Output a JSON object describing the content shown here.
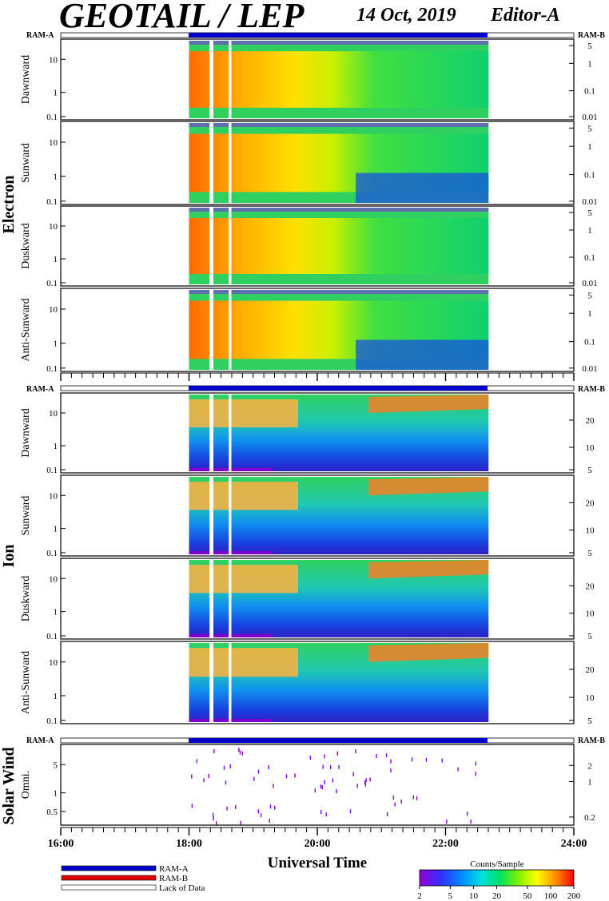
{
  "title": "GEOTAIL / LEP",
  "date": "14 Oct, 2019",
  "editor": "Editor-A",
  "xlabel": "Universal Time",
  "xticks": [
    "16:00",
    "18:00",
    "20:00",
    "22:00",
    "24:00"
  ],
  "ram_a": "RAM-A",
  "ram_b": "RAM-B",
  "groups": {
    "electron": "Electron",
    "ion": "Ion",
    "solar_wind": "Solar Wind"
  },
  "colorbar": {
    "title": "Counts/Sample",
    "ticks": [
      "2",
      "5",
      "10",
      "20",
      "50",
      "100",
      "200"
    ]
  },
  "legend": [
    {
      "label": "RAM-A",
      "color": "#0000c8"
    },
    {
      "label": "RAM-B",
      "color": "#e00000"
    },
    {
      "label": "Lack of Data",
      "color": "#ffffff"
    }
  ],
  "chart_data": {
    "type": "heatmap",
    "x_range_hours": [
      16,
      24
    ],
    "data_coverage_hours": [
      18.0,
      22.67
    ],
    "data_gaps_hours": [
      [
        18.32,
        18.38
      ],
      [
        18.62,
        18.66
      ]
    ],
    "panels": [
      {
        "group": "Electron",
        "name": "Dawnward",
        "yticks_left": [
          "10",
          "1",
          "0.1"
        ],
        "yticks_right": [
          "5",
          "1",
          "0.1",
          "0.01"
        ]
      },
      {
        "group": "Electron",
        "name": "Sunward",
        "yticks_left": [
          "10",
          "1",
          "0.1"
        ],
        "yticks_right": [
          "5",
          "1",
          "0.1",
          "0.01"
        ]
      },
      {
        "group": "Electron",
        "name": "Duskward",
        "yticks_left": [
          "10",
          "1",
          "0.1"
        ],
        "yticks_right": [
          "5",
          "1",
          "0.1",
          "0.01"
        ]
      },
      {
        "group": "Electron",
        "name": "Anti-Sunward",
        "yticks_left": [
          "10",
          "1",
          "0.1"
        ],
        "yticks_right": [
          "5",
          "1",
          "0.1",
          "0.01"
        ]
      },
      {
        "group": "Ion",
        "name": "Dawnward",
        "yticks_left": [
          "10",
          "1",
          "0.1"
        ],
        "yticks_right": [
          "20",
          "10",
          "5"
        ]
      },
      {
        "group": "Ion",
        "name": "Sunward",
        "yticks_left": [
          "10",
          "1",
          "0.1"
        ],
        "yticks_right": [
          "20",
          "10",
          "5"
        ]
      },
      {
        "group": "Ion",
        "name": "Duskward",
        "yticks_left": [
          "10",
          "1",
          "0.1"
        ],
        "yticks_right": [
          "20",
          "10",
          "5"
        ]
      },
      {
        "group": "Ion",
        "name": "Anti-Sunward",
        "yticks_left": [
          "10",
          "1",
          "0.1"
        ],
        "yticks_right": [
          "20",
          "10",
          "5"
        ]
      },
      {
        "group": "Solar Wind",
        "name": "Omni.",
        "yticks_left": [
          "5",
          "1",
          "0.5"
        ],
        "yticks_right": [
          "2",
          "1",
          "0.2"
        ]
      }
    ]
  }
}
